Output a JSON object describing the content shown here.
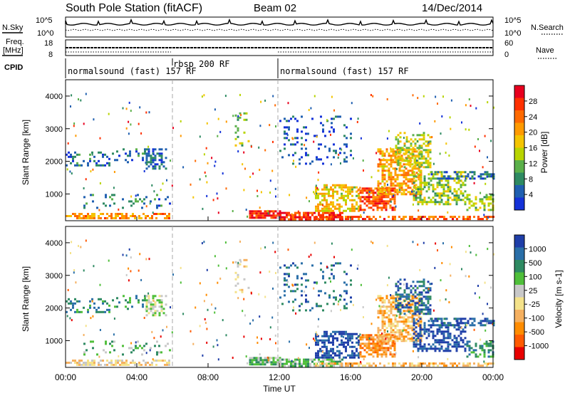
{
  "header": {
    "title": "South Pole Station (fitACF)",
    "beam": "Beam 02",
    "date": "14/Dec/2014"
  },
  "side_labels": {
    "nsky": "N.Sky",
    "freq_line1": "Freq.",
    "freq_line2": "[MHz]",
    "cpid": "CPID",
    "nsearch": "N.Search",
    "nave": "Nave"
  },
  "top_axes": {
    "noise_ticks": [
      "10^5",
      "10^0"
    ],
    "noise_ticks_right": [
      "10^5",
      "10^0"
    ],
    "freq_ticks": [
      "18",
      "8"
    ],
    "nave_ticks": [
      "60",
      "0"
    ]
  },
  "cpid_segments": [
    {
      "label": "normalsound (fast) 157 RF",
      "start": 0,
      "end": 6
    },
    {
      "label": "rbsp 200 RF",
      "start": 6,
      "end": 12
    },
    {
      "label": "normalsound (fast) 157 RF",
      "start": 12,
      "end": 24
    }
  ],
  "chart_data": [
    {
      "type": "heatmap",
      "name": "power",
      "ylabel": "Slant Range [km]",
      "xlabel": "",
      "xlim": [
        0,
        24
      ],
      "ylim": [
        180,
        4500
      ],
      "y_ticks": [
        "1000",
        "2000",
        "3000",
        "4000"
      ],
      "colorbar": {
        "label": "Power [dB]",
        "ticks": [
          "28",
          "24",
          "20",
          "16",
          "12",
          "8",
          "4"
        ],
        "colors": [
          "#e8001e",
          "#ff3000",
          "#ff6a00",
          "#ff9a00",
          "#f4c400",
          "#b8d400",
          "#5bb04a",
          "#2e8a62",
          "#1f5fb0",
          "#1432d8"
        ]
      }
    },
    {
      "type": "heatmap",
      "name": "velocity",
      "ylabel": "Slant Range [km]",
      "xlabel": "Time UT",
      "xlim": [
        0,
        24
      ],
      "ylim": [
        180,
        4500
      ],
      "y_ticks": [
        "1000",
        "2000",
        "3000",
        "4000"
      ],
      "x_ticks": [
        "00:00",
        "04:00",
        "08:00",
        "12:00",
        "16:00",
        "20:00",
        "00:00"
      ],
      "colorbar": {
        "label": "Velocity [m s-1]",
        "ticks": [
          "1000",
          "500",
          "100",
          "25",
          "-25",
          "-100",
          "-500",
          "-1000"
        ],
        "colors": [
          "#1f3ea8",
          "#2a6fa8",
          "#2e8a62",
          "#4fbf3a",
          "#c8c8c8",
          "#f4e28a",
          "#f5b060",
          "#ff8c00",
          "#ff5a00",
          "#e80000"
        ]
      }
    }
  ]
}
